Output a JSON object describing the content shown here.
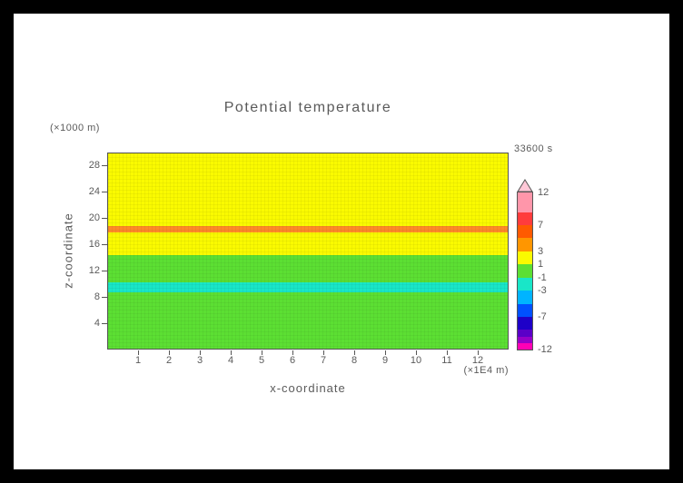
{
  "page": {
    "background": "#000000",
    "canvas_background": "#FFFFFF"
  },
  "chart_data": {
    "type": "heatmap",
    "title": "Potential temperature",
    "timestamp_label": "33600 s",
    "xlabel": "x-coordinate",
    "ylabel": "z-coordinate",
    "x_unit_label": "(×1E4 m)",
    "y_unit_label": "(×1000 m)",
    "xlim": [
      0,
      13
    ],
    "ylim": [
      0,
      30
    ],
    "x_ticks": [
      1,
      2,
      3,
      4,
      5,
      6,
      7,
      8,
      9,
      10,
      11,
      12
    ],
    "y_ticks": [
      4,
      8,
      12,
      16,
      20,
      24,
      28
    ],
    "text_color": "#5A5A5A",
    "axis_color": "#555555",
    "field_bands": [
      {
        "z0": 0,
        "z1": 8.6,
        "value_range": "-1 to 1",
        "color": "#5CDF33"
      },
      {
        "z0": 8.6,
        "z1": 10.2,
        "value_range": "-3 to -1",
        "color": "#19E6C8"
      },
      {
        "z0": 10.2,
        "z1": 14.4,
        "value_range": "-1 to 1",
        "color": "#5CDF33"
      },
      {
        "z0": 14.4,
        "z1": 17.8,
        "value_range": "1 to 3",
        "color": "#FAFA00"
      },
      {
        "z0": 17.8,
        "z1": 18.9,
        "value_range": "3 to 7",
        "color": "#FF8A28"
      },
      {
        "z0": 18.9,
        "z1": 30,
        "value_range": "1 to 3",
        "color": "#FAFA00"
      }
    ],
    "colorbar": {
      "vmin": -12,
      "vmax": 12,
      "cap_color": "#FFC8D7",
      "segments": [
        {
          "v0": 9,
          "v1": 12,
          "color": "#FF96AA"
        },
        {
          "v0": 7,
          "v1": 9,
          "color": "#FF3C3C"
        },
        {
          "v0": 5,
          "v1": 7,
          "color": "#FF5A00"
        },
        {
          "v0": 3,
          "v1": 5,
          "color": "#FF9600"
        },
        {
          "v0": 1,
          "v1": 3,
          "color": "#FAFA00"
        },
        {
          "v0": -1,
          "v1": 1,
          "color": "#5CDF33"
        },
        {
          "v0": -3,
          "v1": -1,
          "color": "#19E6C8"
        },
        {
          "v0": -5,
          "v1": -3,
          "color": "#00B4FF"
        },
        {
          "v0": -7,
          "v1": -5,
          "color": "#0050FF"
        },
        {
          "v0": -9,
          "v1": -7,
          "color": "#1E00C8"
        },
        {
          "v0": -10,
          "v1": -9,
          "color": "#5A00C8"
        },
        {
          "v0": -11,
          "v1": -10,
          "color": "#9600C8"
        },
        {
          "v0": -12,
          "v1": -11,
          "color": "#FF00B4"
        }
      ],
      "labels": [
        {
          "value": 12,
          "text": "12"
        },
        {
          "value": 7,
          "text": "7"
        },
        {
          "value": 3,
          "text": "3"
        },
        {
          "value": 1,
          "text": "1"
        },
        {
          "value": -1,
          "text": "-1"
        },
        {
          "value": -3,
          "text": "-3"
        },
        {
          "value": -7,
          "text": "-7"
        },
        {
          "value": -12,
          "text": "-12"
        }
      ]
    }
  }
}
